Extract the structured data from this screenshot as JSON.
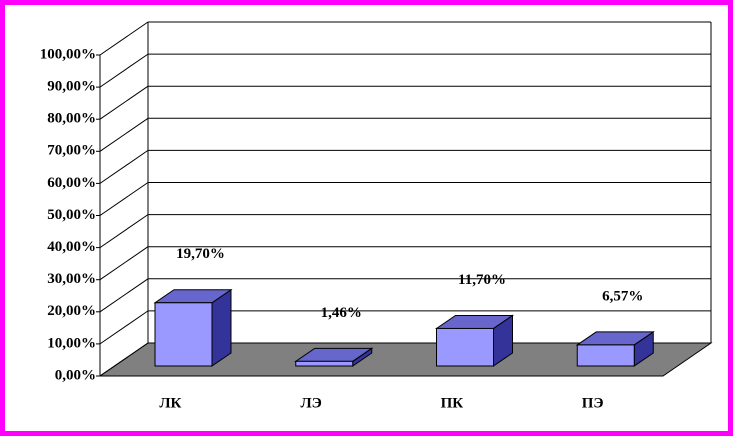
{
  "chart_data": {
    "type": "bar3d",
    "categories": [
      "ЛК",
      "ЛЭ",
      "ПК",
      "ПЭ"
    ],
    "values": [
      19.7,
      1.46,
      11.7,
      6.57
    ],
    "value_labels": [
      "19,70%",
      "1,46%",
      "11,70%",
      "6,57%"
    ],
    "color": "#9999ff",
    "ylim": [
      0,
      100
    ],
    "yticks": [
      {
        "value": 0,
        "label": "0,00%"
      },
      {
        "value": 10,
        "label": "10,00%"
      },
      {
        "value": 20,
        "label": "20,00%"
      },
      {
        "value": 30,
        "label": "30,00%"
      },
      {
        "value": 40,
        "label": "40,00%"
      },
      {
        "value": 50,
        "label": "50,00%"
      },
      {
        "value": 60,
        "label": "60,00%"
      },
      {
        "value": 70,
        "label": "70,00%"
      },
      {
        "value": 80,
        "label": "80,00%"
      },
      {
        "value": 90,
        "label": "90,00%"
      },
      {
        "value": 100,
        "label": "100,00%"
      }
    ],
    "grid": true
  }
}
